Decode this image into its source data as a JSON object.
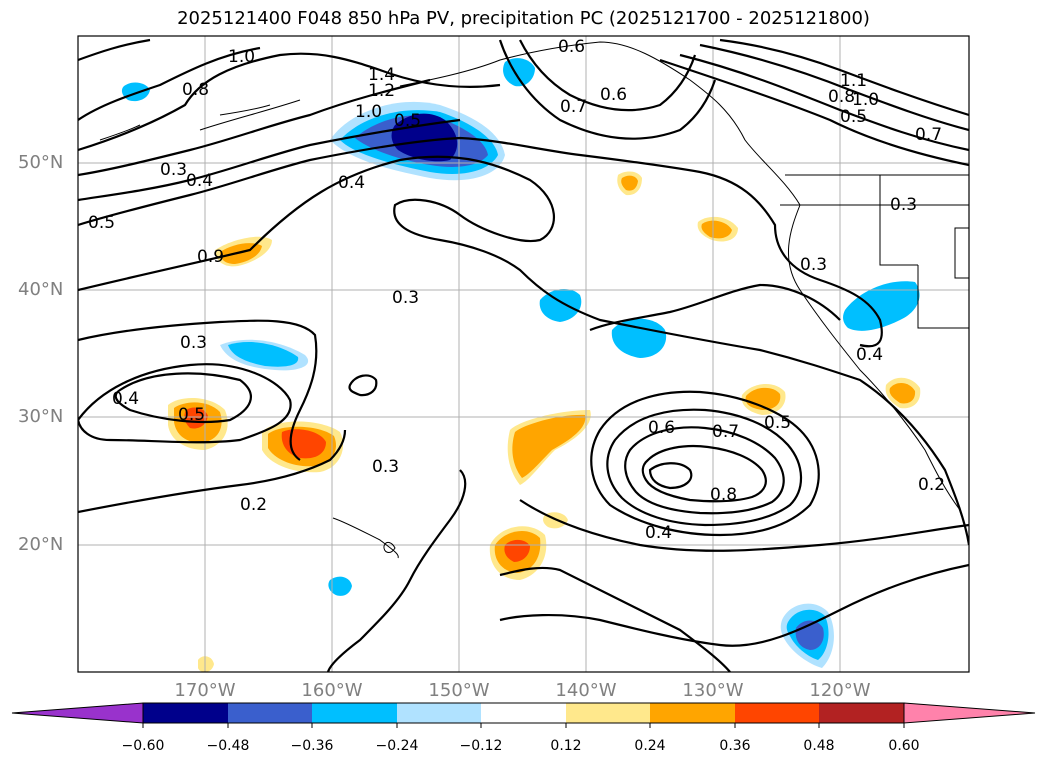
{
  "title": "2025121400 F048 850 hPa PV, precipitation PC (2025121700 - 2025121800)",
  "lat_labels": [
    "50°N",
    "40°N",
    "30°N",
    "20°N"
  ],
  "lon_labels": [
    "170°W",
    "160°W",
    "150°W",
    "140°W",
    "130°W",
    "120°W"
  ],
  "contour_labels": [
    "1.0",
    "0.8",
    "1.4",
    "1.2",
    "1.0",
    "0.5",
    "0.4",
    "0.3",
    "0.5",
    "0.9",
    "0.4",
    "0.3",
    "0.3",
    "0.4",
    "0.5",
    "0.2",
    "0.3",
    "0.6",
    "0.7",
    "0.6",
    "1.1",
    "0.8",
    "1.0",
    "0.5",
    "0.7",
    "0.3",
    "0.3",
    "0.4",
    "0.6",
    "0.7",
    "0.5",
    "0.8",
    "0.4",
    "0.2"
  ],
  "colorbar": {
    "ticks": [
      "−0.60",
      "−0.48",
      "−0.36",
      "−0.24",
      "−0.12",
      "0.12",
      "0.24",
      "0.36",
      "0.48",
      "0.60"
    ],
    "colors": [
      "#9932CC",
      "#00008B",
      "#3A5FCD",
      "#00BFFF",
      "#B0E2FF",
      "#FFFFFF",
      "#FFE88C",
      "#FFA500",
      "#FF4500",
      "#B22222",
      "#FF82AB"
    ]
  }
}
